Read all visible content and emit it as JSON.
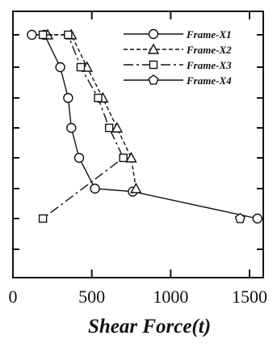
{
  "chart_data": {
    "type": "line",
    "title": "",
    "xlabel": "Shear Force(t)",
    "ylabel": "",
    "xlim": [
      0,
      1600
    ],
    "ylim": [
      0.5,
      8.5
    ],
    "x_ticks": [
      0,
      500,
      1000,
      1500
    ],
    "x_tick_labels": [
      "0",
      "500",
      "1000",
      "1500"
    ],
    "y_ticks": [
      1,
      2,
      3,
      4,
      5,
      6,
      7,
      8
    ],
    "legend_position": "top-right",
    "series": [
      {
        "name": "Frame-X1",
        "marker": "circle",
        "dash": "solid",
        "points": [
          [
            120,
            9
          ],
          [
            200,
            8
          ],
          [
            300,
            7
          ],
          [
            350,
            6
          ],
          [
            370,
            5
          ],
          [
            420,
            4
          ],
          [
            520,
            3
          ],
          [
            760,
            2.9
          ],
          [
            1550,
            2
          ]
        ]
      },
      {
        "name": "Frame-X2",
        "marker": "triangle",
        "dash": "short-dash",
        "points": [
          [
            220,
            9
          ],
          [
            370,
            8
          ],
          [
            470,
            7
          ],
          [
            570,
            6
          ],
          [
            660,
            5
          ],
          [
            750,
            4
          ],
          [
            780,
            3
          ]
        ]
      },
      {
        "name": "Frame-X3",
        "marker": "square",
        "dash": "long-dash",
        "points": [
          [
            190,
            9
          ],
          [
            350,
            8
          ],
          [
            430,
            7
          ],
          [
            540,
            6
          ],
          [
            610,
            5
          ],
          [
            700,
            4
          ],
          [
            190,
            2
          ]
        ]
      },
      {
        "name": "Frame-X4",
        "marker": "pentagon",
        "dash": "solid",
        "points": [
          [
            1440,
            2
          ]
        ]
      }
    ]
  }
}
